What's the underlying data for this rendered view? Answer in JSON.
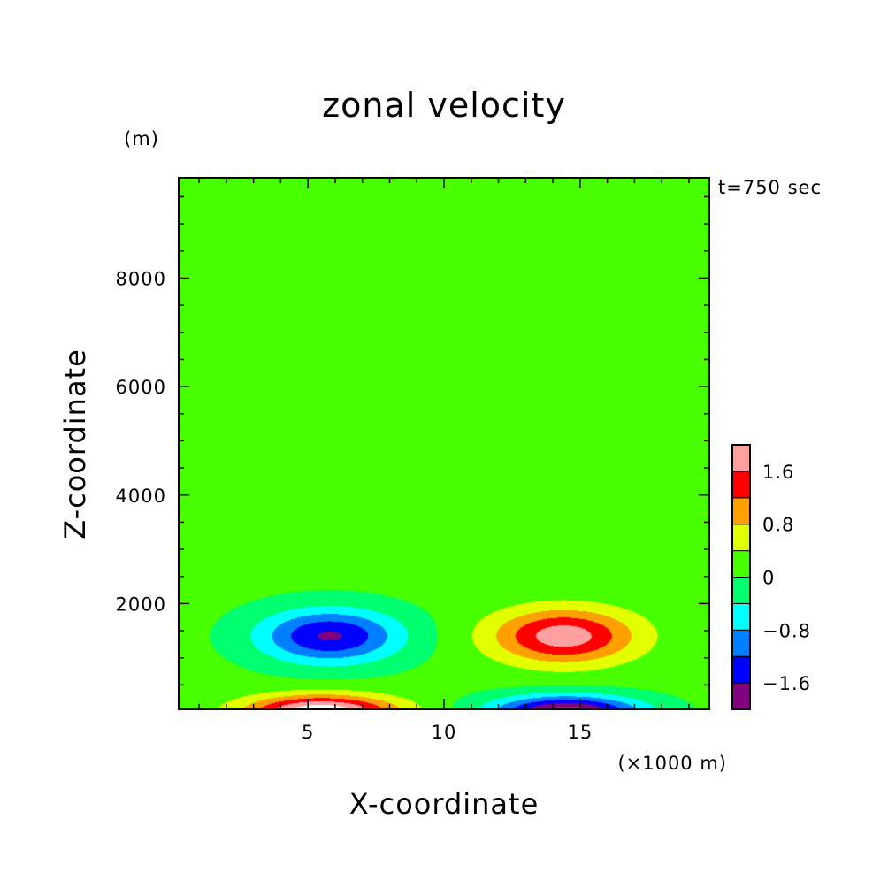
{
  "chart_data": {
    "type": "contour",
    "title": "zonal velocity",
    "xlabel": "X-coordinate",
    "ylabel": "Z-coordinate",
    "x_unit": "(×1000 m)",
    "y_unit": "(m)",
    "time_label": "t=750 sec",
    "xlim": [
      0.25,
      19.75
    ],
    "ylim": [
      50,
      9850
    ],
    "x_ticks": [
      5,
      10,
      15
    ],
    "y_ticks": [
      2000,
      4000,
      6000,
      8000
    ],
    "x_tick_labels": [
      "5",
      "10",
      "15"
    ],
    "y_tick_labels": [
      "2000",
      "4000",
      "6000",
      "8000"
    ],
    "grid": false,
    "colorbar": {
      "levels": [
        -2.0,
        -1.6,
        -1.2,
        -0.8,
        -0.4,
        0,
        0.4,
        0.8,
        1.2,
        1.6,
        2.0
      ],
      "colors": [
        "#800080",
        "#0000ff",
        "#0080ff",
        "#00ffff",
        "#00ff6e",
        "#48ff00",
        "#e2ff00",
        "#ffa000",
        "#ff0000",
        "#ffa0a0"
      ],
      "labels": [
        "-1.6",
        "-0.8",
        "0",
        "0.8",
        "1.6"
      ],
      "label_values": [
        -1.6,
        -0.8,
        0,
        0.8,
        1.6
      ]
    },
    "field": {
      "background": 0.1,
      "cells": [
        {
          "x": 5.8,
          "z": 1400,
          "sx": 2.6,
          "sz": 500,
          "amp": -1.75
        },
        {
          "x": 14.4,
          "z": 1400,
          "sx": 2.6,
          "sz": 500,
          "amp": 1.75
        },
        {
          "x": 5.5,
          "z": 0,
          "sx": 2.7,
          "sz": 300,
          "amp": 2.3
        },
        {
          "x": 14.5,
          "z": 0,
          "sx": 2.7,
          "sz": 300,
          "amp": -2.3
        }
      ]
    }
  }
}
